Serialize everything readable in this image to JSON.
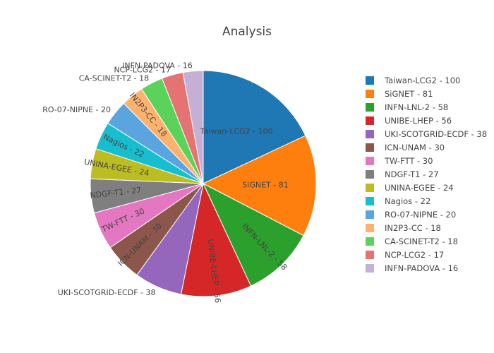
{
  "chart_data": {
    "type": "pie",
    "title": "Analysis",
    "slices": [
      {
        "label": "Taiwan-LCG2",
        "value": 100,
        "text": "Taiwan-LCG2 - 100",
        "color": "#1f77b4"
      },
      {
        "label": "SiGNET",
        "value": 81,
        "text": "SiGNET - 81",
        "color": "#ff7f0e"
      },
      {
        "label": "INFN-LNL-2",
        "value": 58,
        "text": "INFN-LNL-2 - 58",
        "color": "#2ca02c"
      },
      {
        "label": "UNIBE-LHEP",
        "value": 56,
        "text": "UNIBE-LHEP - 56",
        "color": "#d62728"
      },
      {
        "label": "UKI-SCOTGRID-ECDF",
        "value": 38,
        "text": "UKI-SCOTGRID-ECDF - 38",
        "color": "#9467bd"
      },
      {
        "label": "ICN-UNAM",
        "value": 30,
        "text": "ICN-UNAM - 30",
        "color": "#8c564b"
      },
      {
        "label": "TW-FTT",
        "value": 30,
        "text": "TW-FTT - 30",
        "color": "#e377c2"
      },
      {
        "label": "NDGF-T1",
        "value": 27,
        "text": "NDGF-T1 - 27",
        "color": "#7f7f7f"
      },
      {
        "label": "UNINA-EGEE",
        "value": 24,
        "text": "UNINA-EGEE - 24",
        "color": "#bcbd22"
      },
      {
        "label": "Nagios",
        "value": 22,
        "text": "Nagios - 22",
        "color": "#17becf"
      },
      {
        "label": "RO-07-NIPNE",
        "value": 20,
        "text": "RO-07-NIPNE - 20",
        "color": "#5aa5e0"
      },
      {
        "label": "IN2P3-CC",
        "value": 18,
        "text": "IN2P3-CC - 18",
        "color": "#ffb26e"
      },
      {
        "label": "CA-SCINET-T2",
        "value": 18,
        "text": "CA-SCINET-T2 - 18",
        "color": "#5bd35b"
      },
      {
        "label": "NCP-LCG2",
        "value": 17,
        "text": "NCP-LCG2 - 17",
        "color": "#e57373"
      },
      {
        "label": "INFN-PADOVA",
        "value": 16,
        "text": "INFN-PADOVA - 16",
        "color": "#c5b0d5"
      }
    ],
    "legend_position": "right"
  }
}
